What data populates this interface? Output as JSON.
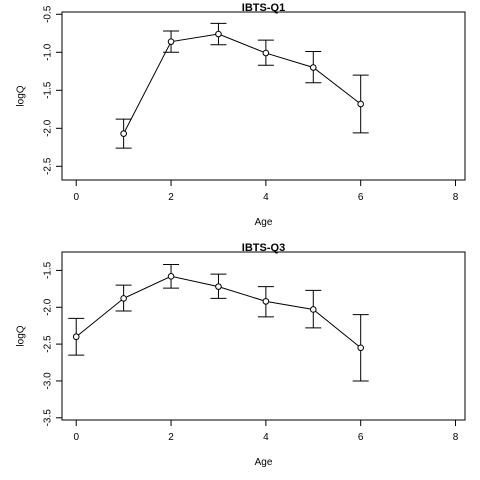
{
  "chart_data": [
    {
      "type": "line",
      "title": "IBTS-Q1",
      "xlabel": "Age",
      "ylabel": "logQ",
      "xlim": [
        0,
        8
      ],
      "ylim": [
        -2.5,
        -0.5
      ],
      "x_ticks": [
        0,
        2,
        4,
        6,
        8
      ],
      "y_ticks": [
        -2.5,
        -2.0,
        -1.5,
        -1.0,
        -0.5
      ],
      "x_tick_labels": [
        "0",
        "2",
        "4",
        "6",
        "8"
      ],
      "y_tick_labels": [
        "-2.5",
        "-2.0",
        "-1.5",
        "-1.0",
        "-0.5"
      ],
      "x": [
        1,
        2,
        3,
        4,
        5,
        6
      ],
      "y": [
        -2.07,
        -0.86,
        -0.76,
        -1.01,
        -1.2,
        -1.68
      ],
      "y_lower": [
        -2.26,
        -1.0,
        -0.9,
        -1.17,
        -1.4,
        -2.06
      ],
      "y_upper": [
        -1.88,
        -0.72,
        -0.62,
        -0.84,
        -0.99,
        -1.3
      ],
      "grid": false
    },
    {
      "type": "line",
      "title": "IBTS-Q3",
      "xlabel": "Age",
      "ylabel": "logQ",
      "xlim": [
        0,
        8
      ],
      "ylim": [
        -3.5,
        -1.5
      ],
      "x_ticks": [
        0,
        2,
        4,
        6,
        8
      ],
      "y_ticks": [
        -3.5,
        -3.0,
        -2.5,
        -2.0,
        -1.5
      ],
      "x_tick_labels": [
        "0",
        "2",
        "4",
        "6",
        "8"
      ],
      "y_tick_labels": [
        "-3.5",
        "-3.0",
        "-2.5",
        "-2.0",
        "-1.5"
      ],
      "x": [
        0,
        1,
        2,
        3,
        4,
        5,
        6
      ],
      "y": [
        -2.4,
        -1.88,
        -1.58,
        -1.72,
        -1.92,
        -2.03,
        -2.55
      ],
      "y_lower": [
        -2.65,
        -2.05,
        -1.74,
        -1.88,
        -2.13,
        -2.28,
        -3.0
      ],
      "y_upper": [
        -2.15,
        -1.7,
        -1.42,
        -1.55,
        -1.72,
        -1.77,
        -2.1
      ],
      "grid": false
    }
  ]
}
